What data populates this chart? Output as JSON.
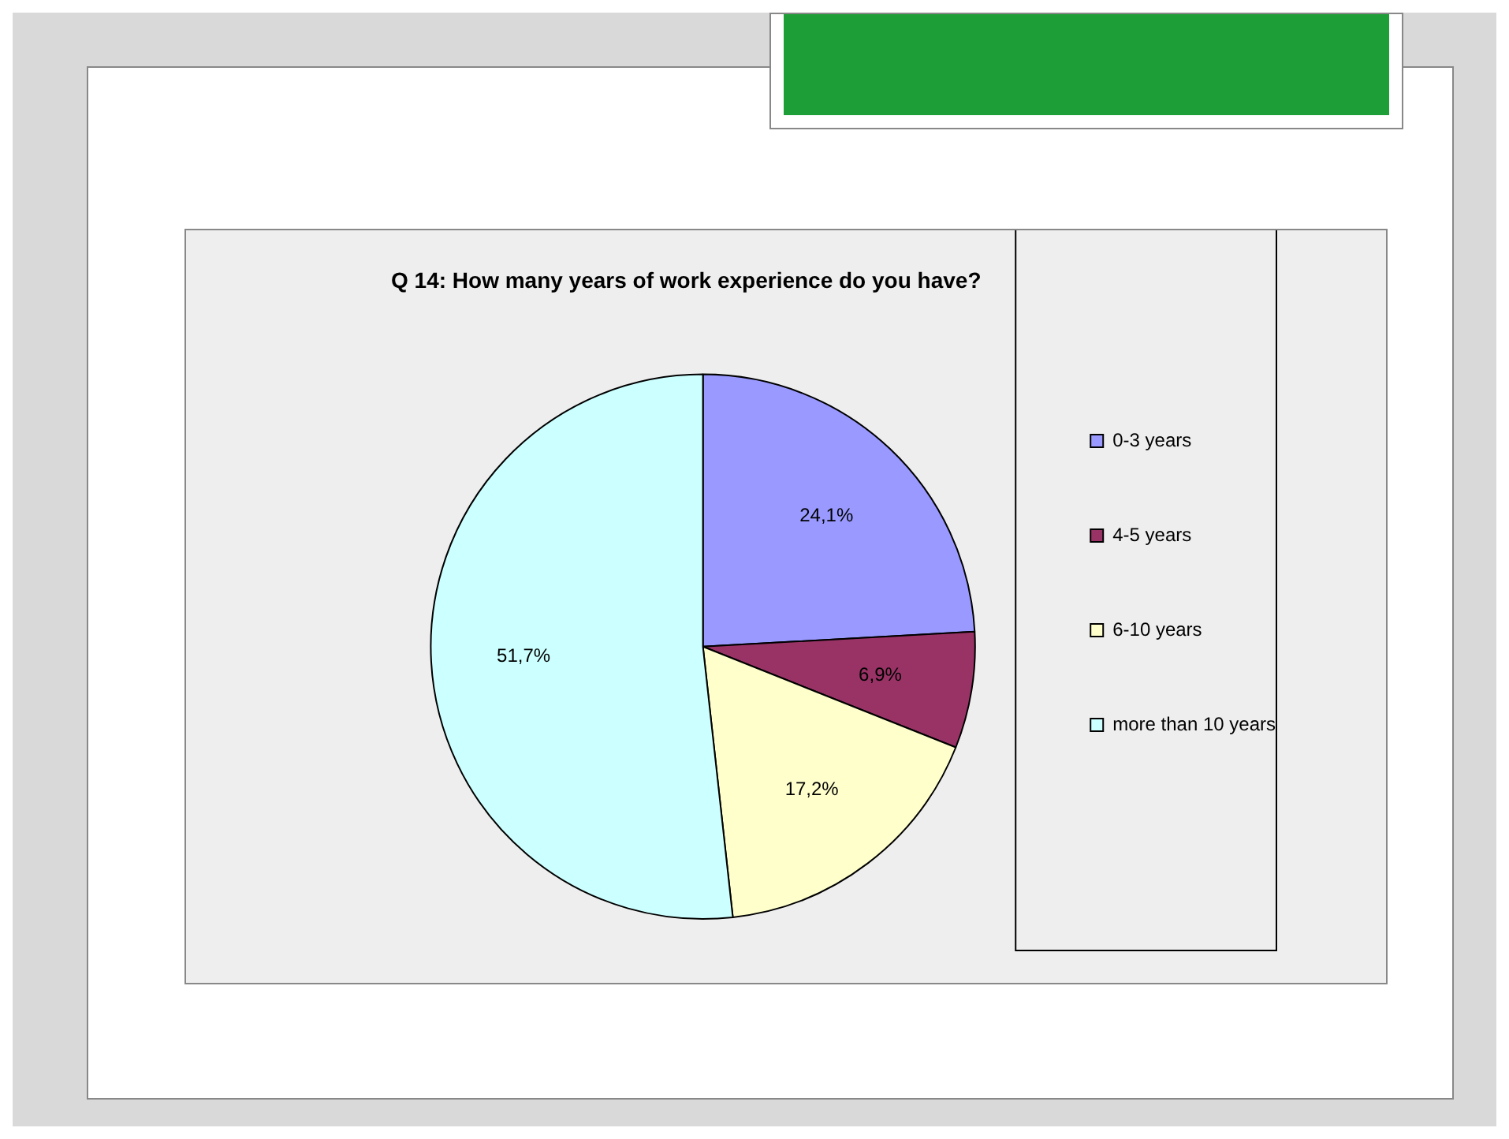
{
  "chart_data": {
    "type": "pie",
    "title": "Q 14: How many years of work experience do you have?",
    "categories": [
      "0-3 years",
      "4-5 years",
      "6-10 years",
      "more than 10 years"
    ],
    "values": [
      24.1,
      6.9,
      17.2,
      51.7
    ],
    "value_labels": [
      "24,1%",
      "6,9%",
      "17,2%",
      "51,7%"
    ],
    "colors": [
      "#9999ff",
      "#993366",
      "#ffffcc",
      "#ccffff"
    ],
    "legend": "right"
  }
}
